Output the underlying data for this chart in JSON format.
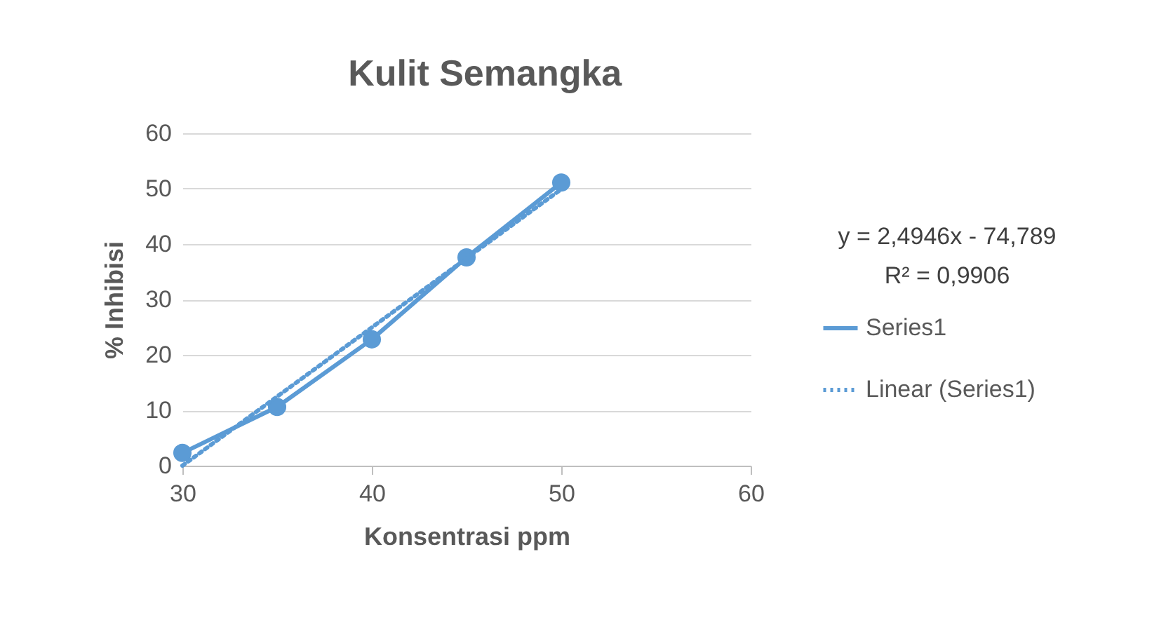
{
  "chart_data": {
    "type": "line",
    "title": "Kulit Semangka",
    "xlabel": "Konsentrasi ppm",
    "ylabel": "% Inhibisi",
    "x": [
      30,
      35,
      40,
      45,
      50
    ],
    "series": [
      {
        "name": "Series1",
        "color": "#5b9bd5",
        "values": [
          2.3,
          10.6,
          22.8,
          37.6,
          51.1
        ],
        "marker": "circle",
        "line_style": "solid"
      },
      {
        "name": "Linear (Series1)",
        "type": "line",
        "color": "#5b9bd5",
        "x": [
          30,
          50
        ],
        "values": [
          0,
          49.9
        ],
        "marker": "none",
        "line_style": "dotted"
      }
    ],
    "xlim": [
      30,
      60
    ],
    "xticks": [
      30,
      40,
      50,
      60
    ],
    "ylim": [
      0,
      60
    ],
    "yticks": [
      0,
      10,
      20,
      30,
      40,
      50,
      60
    ],
    "grid": "y",
    "legend": "right",
    "annotations": [
      "y = 2,4946x - 74,789",
      "R² = 0,9906"
    ]
  }
}
